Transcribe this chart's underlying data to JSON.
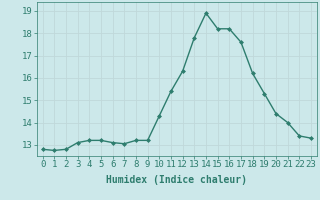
{
  "x": [
    0,
    1,
    2,
    3,
    4,
    5,
    6,
    7,
    8,
    9,
    10,
    11,
    12,
    13,
    14,
    15,
    16,
    17,
    18,
    19,
    20,
    21,
    22,
    23
  ],
  "y": [
    12.8,
    12.75,
    12.8,
    13.1,
    13.2,
    13.2,
    13.1,
    13.05,
    13.2,
    13.2,
    14.3,
    15.4,
    16.3,
    17.8,
    18.9,
    18.2,
    18.2,
    17.6,
    16.2,
    15.3,
    14.4,
    14.0,
    13.4,
    13.3
  ],
  "line_color": "#2e7d6e",
  "marker": "D",
  "marker_size": 2.0,
  "bg_color": "#cce8ea",
  "grid_color": "#c0d8da",
  "xlabel": "Humidex (Indice chaleur)",
  "ylim": [
    12.5,
    19.4
  ],
  "xlim": [
    -0.5,
    23.5
  ],
  "yticks": [
    13,
    14,
    15,
    16,
    17,
    18,
    19
  ],
  "xtick_labels": [
    "0",
    "1",
    "2",
    "3",
    "4",
    "5",
    "6",
    "7",
    "8",
    "9",
    "10",
    "11",
    "12",
    "13",
    "14",
    "15",
    "16",
    "17",
    "18",
    "19",
    "20",
    "21",
    "22",
    "23"
  ],
  "label_fontsize": 7,
  "tick_fontsize": 6.5
}
